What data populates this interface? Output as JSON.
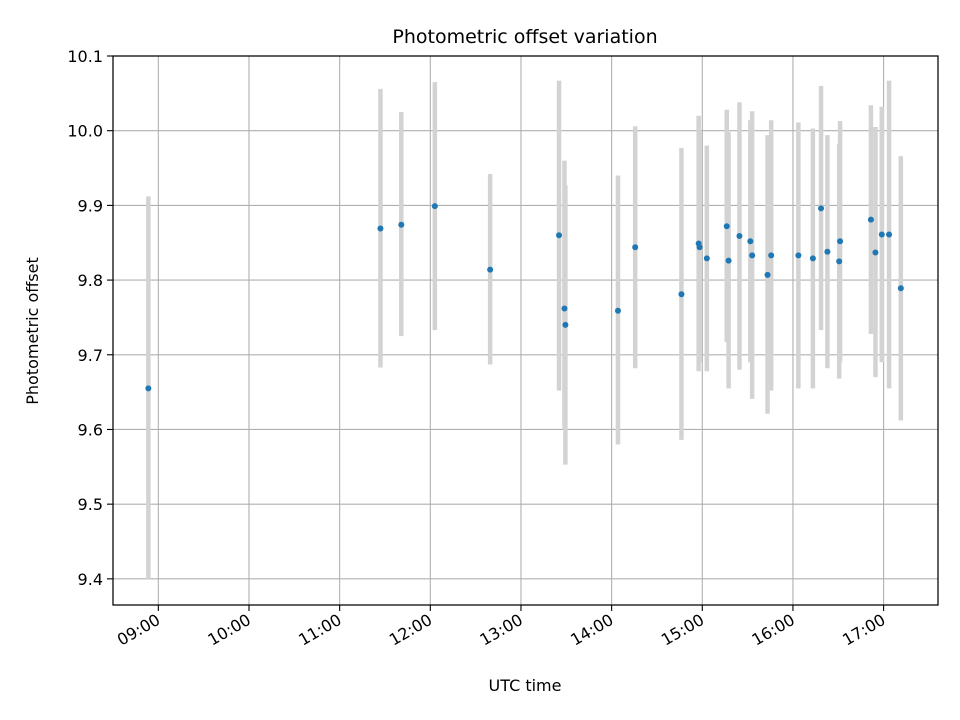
{
  "chart_data": {
    "type": "scatter",
    "title": "Photometric offset variation",
    "xlabel": "UTC time",
    "ylabel": "Photometric offset",
    "x_unit": "hours UTC",
    "xlim": [
      8.5,
      17.6
    ],
    "ylim": [
      9.365,
      10.1
    ],
    "grid": true,
    "legend": "none",
    "colors": {
      "point": "#1f77b4",
      "errorbar": "#d3d3d3",
      "grid": "#b0b0b0",
      "axes": "#000000"
    },
    "x_ticks": [
      {
        "value": 9,
        "label": "09:00"
      },
      {
        "value": 10,
        "label": "10:00"
      },
      {
        "value": 11,
        "label": "11:00"
      },
      {
        "value": 12,
        "label": "12:00"
      },
      {
        "value": 13,
        "label": "13:00"
      },
      {
        "value": 14,
        "label": "14:00"
      },
      {
        "value": 15,
        "label": "15:00"
      },
      {
        "value": 16,
        "label": "16:00"
      },
      {
        "value": 17,
        "label": "17:00"
      }
    ],
    "y_ticks": [
      {
        "value": 9.4,
        "label": "9.4"
      },
      {
        "value": 9.5,
        "label": "9.5"
      },
      {
        "value": 9.6,
        "label": "9.6"
      },
      {
        "value": 9.7,
        "label": "9.7"
      },
      {
        "value": 9.8,
        "label": "9.8"
      },
      {
        "value": 9.9,
        "label": "9.9"
      },
      {
        "value": 10.0,
        "label": "10.0"
      },
      {
        "value": 10.1,
        "label": "10.1"
      }
    ],
    "points": [
      {
        "x": 8.89,
        "y": 9.655,
        "err_low": 9.4,
        "err_high": 9.912
      },
      {
        "x": 11.45,
        "y": 9.869,
        "err_low": 9.683,
        "err_high": 10.056
      },
      {
        "x": 11.68,
        "y": 9.874,
        "err_low": 9.725,
        "err_high": 10.025
      },
      {
        "x": 12.05,
        "y": 9.899,
        "err_low": 9.733,
        "err_high": 10.065
      },
      {
        "x": 12.66,
        "y": 9.814,
        "err_low": 9.687,
        "err_high": 9.942
      },
      {
        "x": 13.42,
        "y": 9.86,
        "err_low": 9.652,
        "err_high": 10.067
      },
      {
        "x": 13.48,
        "y": 9.762,
        "err_low": 9.6,
        "err_high": 9.96
      },
      {
        "x": 13.49,
        "y": 9.74,
        "err_low": 9.553,
        "err_high": 9.927
      },
      {
        "x": 14.07,
        "y": 9.759,
        "err_low": 9.58,
        "err_high": 9.94
      },
      {
        "x": 14.26,
        "y": 9.844,
        "err_low": 9.682,
        "err_high": 10.006
      },
      {
        "x": 14.77,
        "y": 9.781,
        "err_low": 9.586,
        "err_high": 9.977
      },
      {
        "x": 14.96,
        "y": 9.849,
        "err_low": 9.678,
        "err_high": 10.02
      },
      {
        "x": 14.97,
        "y": 9.844,
        "err_low": 9.69,
        "err_high": 9.998
      },
      {
        "x": 15.05,
        "y": 9.829,
        "err_low": 9.678,
        "err_high": 9.98
      },
      {
        "x": 15.27,
        "y": 9.872,
        "err_low": 9.717,
        "err_high": 10.028
      },
      {
        "x": 15.29,
        "y": 9.826,
        "err_low": 9.655,
        "err_high": 9.998
      },
      {
        "x": 15.41,
        "y": 9.859,
        "err_low": 9.68,
        "err_high": 10.038
      },
      {
        "x": 15.53,
        "y": 9.852,
        "err_low": 9.69,
        "err_high": 10.014
      },
      {
        "x": 15.55,
        "y": 9.833,
        "err_low": 9.641,
        "err_high": 10.026
      },
      {
        "x": 15.72,
        "y": 9.807,
        "err_low": 9.621,
        "err_high": 9.994
      },
      {
        "x": 15.76,
        "y": 9.833,
        "err_low": 9.652,
        "err_high": 10.014
      },
      {
        "x": 16.06,
        "y": 9.833,
        "err_low": 9.655,
        "err_high": 10.011
      },
      {
        "x": 16.22,
        "y": 9.829,
        "err_low": 9.655,
        "err_high": 10.003
      },
      {
        "x": 16.31,
        "y": 9.896,
        "err_low": 9.733,
        "err_high": 10.06
      },
      {
        "x": 16.38,
        "y": 9.838,
        "err_low": 9.682,
        "err_high": 9.994
      },
      {
        "x": 16.51,
        "y": 9.825,
        "err_low": 9.668,
        "err_high": 9.982
      },
      {
        "x": 16.52,
        "y": 9.852,
        "err_low": 9.69,
        "err_high": 10.013
      },
      {
        "x": 16.86,
        "y": 9.881,
        "err_low": 9.728,
        "err_high": 10.034
      },
      {
        "x": 16.91,
        "y": 9.837,
        "err_low": 9.67,
        "err_high": 10.005
      },
      {
        "x": 16.98,
        "y": 9.861,
        "err_low": 9.69,
        "err_high": 10.032
      },
      {
        "x": 17.06,
        "y": 9.861,
        "err_low": 9.655,
        "err_high": 10.067
      },
      {
        "x": 17.19,
        "y": 9.789,
        "err_low": 9.612,
        "err_high": 9.966
      }
    ]
  }
}
